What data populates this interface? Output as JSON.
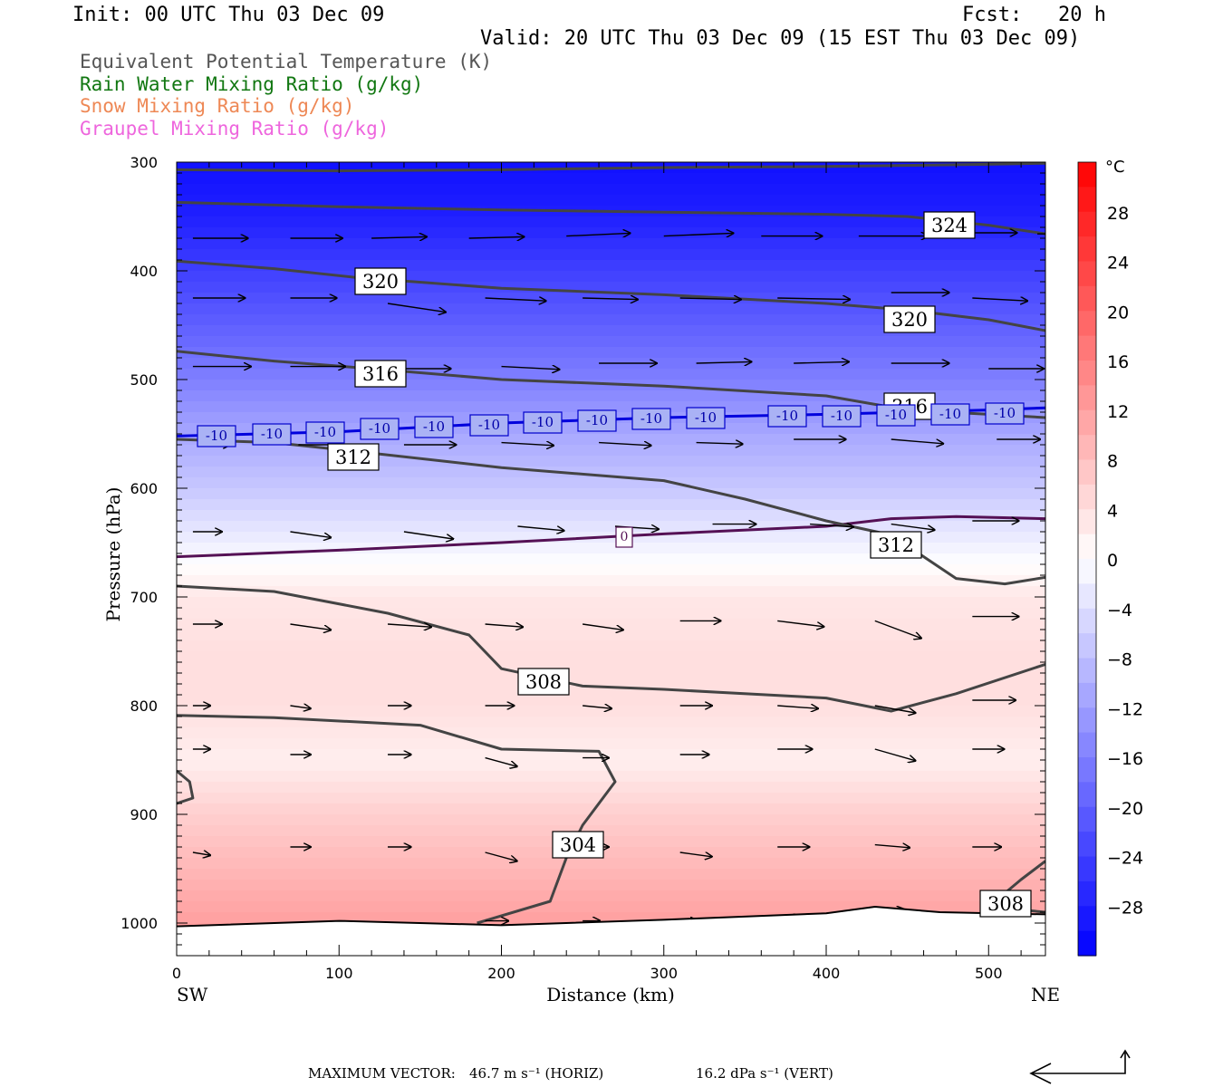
{
  "header": {
    "init": "Init: 00 UTC Thu 03 Dec 09",
    "fcst": "Fcst:   20 h",
    "valid": "Valid: 20 UTC Thu 03 Dec 09 (15 EST Thu 03 Dec 09)"
  },
  "legend": [
    {
      "text": "Equivalent Potential Temperature (K)",
      "color": "#555555"
    },
    {
      "text": "Rain Water Mixing Ratio (g/kg)",
      "color": "#117711"
    },
    {
      "text": "Snow Mixing Ratio (g/kg)",
      "color": "#ee8855"
    },
    {
      "text": "Graupel Mixing Ratio (g/kg)",
      "color": "#ee66dd"
    }
  ],
  "footer": {
    "max_vector_label": "MAXIMUM VECTOR:",
    "horiz": "46.7 m s⁻¹ (HORIZ)",
    "vert": "16.2 dPa s⁻¹ (VERT)"
  },
  "chart_data": {
    "type": "heatmap",
    "xlabel": "Distance (km)",
    "ylabel": "Pressure (hPa)",
    "xlim": [
      0,
      535
    ],
    "ylim": [
      1030,
      300
    ],
    "x_ticks": [
      0,
      100,
      200,
      300,
      400,
      500
    ],
    "y_ticks": [
      300,
      400,
      500,
      600,
      700,
      800,
      900,
      1000
    ],
    "x_end_labels": {
      "left": "SW",
      "right": "NE"
    },
    "colorbar": {
      "unit": "°C",
      "ticks": [
        28,
        24,
        20,
        16,
        12,
        8,
        4,
        0,
        -4,
        -8,
        -12,
        -16,
        -20,
        -24,
        -28
      ],
      "range": [
        -32,
        32
      ],
      "colors": {
        "cold": "#0000ff",
        "neutral": "#ffffff",
        "warm": "#ff0000"
      }
    },
    "temperature_field": {
      "levels_hPa": [
        300,
        350,
        400,
        450,
        500,
        550,
        600,
        650,
        700,
        750,
        800,
        850,
        900,
        950,
        1000
      ],
      "temp_C": [
        -30,
        -28,
        -24,
        -20,
        -16,
        -11,
        -7,
        -2,
        3,
        4,
        4,
        2,
        6,
        9,
        12
      ]
    },
    "theta_e_contours": [
      {
        "label": "324",
        "points": [
          [
            0,
            307
          ],
          [
            100,
            308
          ],
          [
            200,
            307
          ],
          [
            300,
            305
          ],
          [
            400,
            304
          ],
          [
            500,
            302
          ],
          [
            535,
            301
          ]
        ]
      },
      {
        "label": "324",
        "points": [
          [
            0,
            337
          ],
          [
            100,
            341
          ],
          [
            200,
            344
          ],
          [
            300,
            346
          ],
          [
            400,
            348
          ],
          [
            450,
            350
          ],
          [
            500,
            358
          ],
          [
            535,
            366
          ]
        ]
      },
      {
        "label": "320",
        "points": [
          [
            0,
            391
          ],
          [
            60,
            398
          ],
          [
            110,
            406
          ],
          [
            200,
            416
          ],
          [
            300,
            422
          ],
          [
            400,
            430
          ],
          [
            450,
            436
          ],
          [
            500,
            445
          ],
          [
            535,
            455
          ]
        ]
      },
      {
        "label": "316",
        "points": [
          [
            0,
            474
          ],
          [
            60,
            483
          ],
          [
            120,
            490
          ],
          [
            200,
            500
          ],
          [
            300,
            506
          ],
          [
            400,
            515
          ],
          [
            450,
            528
          ],
          [
            500,
            532
          ],
          [
            535,
            535
          ]
        ]
      },
      {
        "label": "312",
        "points": [
          [
            0,
            555
          ],
          [
            60,
            558
          ],
          [
            110,
            566
          ],
          [
            200,
            581
          ],
          [
            300,
            593
          ],
          [
            350,
            610
          ],
          [
            400,
            630
          ],
          [
            440,
            643
          ],
          [
            480,
            683
          ],
          [
            510,
            688
          ],
          [
            535,
            682
          ]
        ]
      },
      {
        "label": "308",
        "points": [
          [
            0,
            690
          ],
          [
            60,
            695
          ],
          [
            130,
            715
          ],
          [
            180,
            735
          ],
          [
            200,
            766
          ],
          [
            250,
            782
          ],
          [
            300,
            785
          ],
          [
            400,
            793
          ],
          [
            440,
            805
          ],
          [
            480,
            789
          ],
          [
            535,
            762
          ]
        ]
      },
      {
        "label": "304",
        "points": [
          [
            0,
            809
          ],
          [
            60,
            811
          ],
          [
            150,
            818
          ],
          [
            200,
            840
          ],
          [
            260,
            842
          ],
          [
            270,
            870
          ],
          [
            250,
            910
          ],
          [
            240,
            940
          ],
          [
            230,
            980
          ],
          [
            185,
            1000
          ]
        ]
      },
      {
        "label": "304",
        "points": [
          [
            0,
            860
          ],
          [
            8,
            870
          ],
          [
            10,
            885
          ],
          [
            0,
            890
          ]
        ]
      },
      {
        "label": "308",
        "points": [
          [
            535,
            943
          ],
          [
            520,
            960
          ],
          [
            500,
            985
          ],
          [
            535,
            990
          ]
        ]
      }
    ],
    "isotherms": [
      {
        "label": "-10",
        "color": "#0000dd",
        "points": [
          [
            0,
            552
          ],
          [
            100,
            548
          ],
          [
            200,
            540
          ],
          [
            300,
            535
          ],
          [
            400,
            532
          ],
          [
            500,
            528
          ],
          [
            535,
            526
          ]
        ]
      },
      {
        "label": "0",
        "color": "#551155",
        "points": [
          [
            0,
            663
          ],
          [
            100,
            657
          ],
          [
            200,
            650
          ],
          [
            300,
            642
          ],
          [
            400,
            635
          ],
          [
            440,
            628
          ],
          [
            480,
            626
          ],
          [
            535,
            628
          ]
        ]
      }
    ],
    "surface_pressure": [
      [
        0,
        1003
      ],
      [
        100,
        998
      ],
      [
        200,
        1002
      ],
      [
        300,
        997
      ],
      [
        400,
        991
      ],
      [
        430,
        985
      ],
      [
        470,
        990
      ],
      [
        535,
        992
      ]
    ],
    "wind_vectors": [
      {
        "x": 10,
        "p": 370,
        "u": 38,
        "v": 0
      },
      {
        "x": 70,
        "p": 370,
        "u": 36,
        "v": 0
      },
      {
        "x": 120,
        "p": 370,
        "u": 38,
        "v": -1
      },
      {
        "x": 180,
        "p": 370,
        "u": 38,
        "v": -1
      },
      {
        "x": 240,
        "p": 368,
        "u": 44,
        "v": -2
      },
      {
        "x": 300,
        "p": 368,
        "u": 48,
        "v": -2
      },
      {
        "x": 360,
        "p": 368,
        "u": 42,
        "v": 0
      },
      {
        "x": 420,
        "p": 368,
        "u": 48,
        "v": 0
      },
      {
        "x": 480,
        "p": 365,
        "u": 42,
        "v": 0
      },
      {
        "x": 530,
        "p": 366,
        "u": 28,
        "v": 0
      },
      {
        "x": 10,
        "p": 425,
        "u": 36,
        "v": 0
      },
      {
        "x": 70,
        "p": 425,
        "u": 32,
        "v": 0
      },
      {
        "x": 130,
        "p": 430,
        "u": 40,
        "v": 6
      },
      {
        "x": 190,
        "p": 425,
        "u": 42,
        "v": 2
      },
      {
        "x": 250,
        "p": 425,
        "u": 38,
        "v": 1
      },
      {
        "x": 310,
        "p": 425,
        "u": 42,
        "v": 1
      },
      {
        "x": 370,
        "p": 425,
        "u": 50,
        "v": 1
      },
      {
        "x": 440,
        "p": 420,
        "u": 40,
        "v": 0
      },
      {
        "x": 490,
        "p": 425,
        "u": 38,
        "v": 2
      },
      {
        "x": 10,
        "p": 488,
        "u": 40,
        "v": 0
      },
      {
        "x": 70,
        "p": 488,
        "u": 38,
        "v": 0
      },
      {
        "x": 135,
        "p": 490,
        "u": 38,
        "v": 0
      },
      {
        "x": 200,
        "p": 488,
        "u": 40,
        "v": 2
      },
      {
        "x": 260,
        "p": 485,
        "u": 40,
        "v": 0
      },
      {
        "x": 320,
        "p": 485,
        "u": 38,
        "v": -1
      },
      {
        "x": 380,
        "p": 485,
        "u": 38,
        "v": -1
      },
      {
        "x": 440,
        "p": 485,
        "u": 40,
        "v": 0
      },
      {
        "x": 500,
        "p": 490,
        "u": 38,
        "v": 0
      },
      {
        "x": 15,
        "p": 560,
        "u": 20,
        "v": 0
      },
      {
        "x": 75,
        "p": 560,
        "u": 32,
        "v": 0
      },
      {
        "x": 140,
        "p": 560,
        "u": 36,
        "v": 0
      },
      {
        "x": 200,
        "p": 558,
        "u": 36,
        "v": 2
      },
      {
        "x": 260,
        "p": 558,
        "u": 36,
        "v": 2
      },
      {
        "x": 320,
        "p": 558,
        "u": 32,
        "v": 1
      },
      {
        "x": 380,
        "p": 555,
        "u": 36,
        "v": 0
      },
      {
        "x": 440,
        "p": 555,
        "u": 36,
        "v": 3
      },
      {
        "x": 505,
        "p": 555,
        "u": 30,
        "v": 0
      },
      {
        "x": 10,
        "p": 640,
        "u": 20,
        "v": 0
      },
      {
        "x": 70,
        "p": 640,
        "u": 28,
        "v": 4
      },
      {
        "x": 140,
        "p": 640,
        "u": 34,
        "v": 5
      },
      {
        "x": 210,
        "p": 635,
        "u": 32,
        "v": 3
      },
      {
        "x": 270,
        "p": 635,
        "u": 30,
        "v": 2
      },
      {
        "x": 330,
        "p": 633,
        "u": 30,
        "v": 0
      },
      {
        "x": 390,
        "p": 633,
        "u": 30,
        "v": 2
      },
      {
        "x": 440,
        "p": 633,
        "u": 30,
        "v": 4
      },
      {
        "x": 490,
        "p": 630,
        "u": 32,
        "v": 0
      },
      {
        "x": 10,
        "p": 725,
        "u": 20,
        "v": 0
      },
      {
        "x": 70,
        "p": 725,
        "u": 28,
        "v": 4
      },
      {
        "x": 130,
        "p": 725,
        "u": 30,
        "v": 2
      },
      {
        "x": 190,
        "p": 725,
        "u": 26,
        "v": 2
      },
      {
        "x": 250,
        "p": 725,
        "u": 28,
        "v": 4
      },
      {
        "x": 310,
        "p": 722,
        "u": 28,
        "v": 0
      },
      {
        "x": 370,
        "p": 722,
        "u": 32,
        "v": 4
      },
      {
        "x": 430,
        "p": 722,
        "u": 32,
        "v": 12
      },
      {
        "x": 490,
        "p": 718,
        "u": 32,
        "v": 0
      },
      {
        "x": 10,
        "p": 800,
        "u": 12,
        "v": 0
      },
      {
        "x": 70,
        "p": 800,
        "u": 14,
        "v": 2
      },
      {
        "x": 130,
        "p": 800,
        "u": 16,
        "v": 0
      },
      {
        "x": 190,
        "p": 800,
        "u": 20,
        "v": 0
      },
      {
        "x": 250,
        "p": 800,
        "u": 20,
        "v": 2
      },
      {
        "x": 310,
        "p": 800,
        "u": 22,
        "v": 0
      },
      {
        "x": 370,
        "p": 800,
        "u": 28,
        "v": 2
      },
      {
        "x": 430,
        "p": 800,
        "u": 28,
        "v": 5
      },
      {
        "x": 490,
        "p": 795,
        "u": 30,
        "v": 0
      },
      {
        "x": 10,
        "p": 840,
        "u": 12,
        "v": 0
      },
      {
        "x": 70,
        "p": 845,
        "u": 14,
        "v": 0
      },
      {
        "x": 130,
        "p": 845,
        "u": 16,
        "v": 0
      },
      {
        "x": 190,
        "p": 848,
        "u": 22,
        "v": 6
      },
      {
        "x": 250,
        "p": 848,
        "u": 18,
        "v": 0
      },
      {
        "x": 310,
        "p": 845,
        "u": 20,
        "v": 0
      },
      {
        "x": 370,
        "p": 840,
        "u": 24,
        "v": 0
      },
      {
        "x": 430,
        "p": 840,
        "u": 28,
        "v": 8
      },
      {
        "x": 490,
        "p": 840,
        "u": 22,
        "v": 0
      },
      {
        "x": 10,
        "p": 935,
        "u": 12,
        "v": 2
      },
      {
        "x": 70,
        "p": 930,
        "u": 14,
        "v": 0
      },
      {
        "x": 130,
        "p": 930,
        "u": 16,
        "v": 0
      },
      {
        "x": 190,
        "p": 935,
        "u": 22,
        "v": 6
      },
      {
        "x": 250,
        "p": 930,
        "u": 18,
        "v": 0
      },
      {
        "x": 310,
        "p": 935,
        "u": 22,
        "v": 3
      },
      {
        "x": 370,
        "p": 930,
        "u": 22,
        "v": 0
      },
      {
        "x": 430,
        "p": 928,
        "u": 24,
        "v": 2
      },
      {
        "x": 490,
        "p": 930,
        "u": 20,
        "v": 0
      },
      {
        "x": 190,
        "p": 998,
        "u": 16,
        "v": 0
      },
      {
        "x": 250,
        "p": 998,
        "u": 12,
        "v": 0
      },
      {
        "x": 310,
        "p": 998,
        "u": 12,
        "v": 0
      },
      {
        "x": 370,
        "p": 995,
        "u": 16,
        "v": 0
      },
      {
        "x": 430,
        "p": 990,
        "u": 20,
        "v": -2
      },
      {
        "x": 490,
        "p": 995,
        "u": 20,
        "v": 0
      }
    ]
  }
}
